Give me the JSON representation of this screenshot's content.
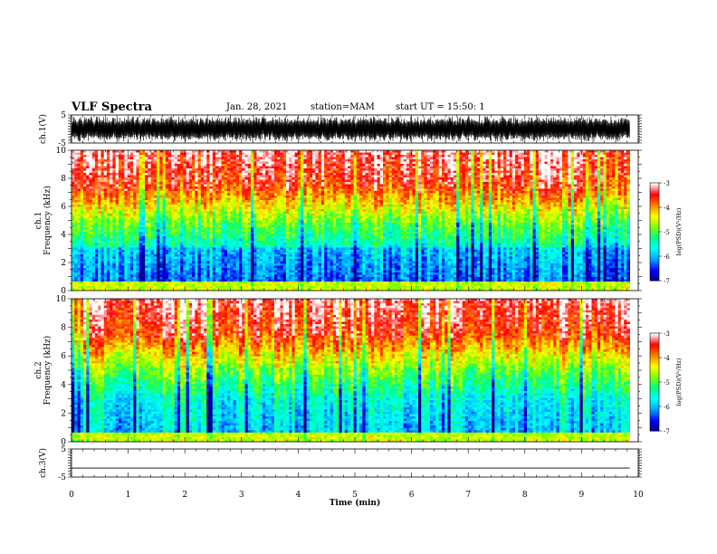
{
  "header": {
    "title": "VLF Spectra",
    "date": "Jan. 28, 2021",
    "station": "station=MAM",
    "start": "start UT =  15:50: 1"
  },
  "chart_data": [
    {
      "type": "line",
      "panel": "ch1-waveform",
      "ylabel": "ch.1(V)",
      "ylim": [
        -5,
        5
      ],
      "yticks": [
        "5",
        "-5"
      ],
      "xlim": [
        0,
        10
      ],
      "description_of_trace": "dense black waveform filling most of the range"
    },
    {
      "type": "heatmap",
      "panel": "ch1-spectrogram",
      "ylabel": "ch.1\nFrequency (kHz)",
      "ylim": [
        0,
        10
      ],
      "yticks": [
        "0",
        "2",
        "4",
        "6",
        "8",
        "10"
      ],
      "xlim": [
        0,
        10
      ],
      "data_xlim": [
        0,
        9.85
      ],
      "colorbar": {
        "label": "log(PSD)(V²/Hz)",
        "range": [
          -7,
          -3
        ],
        "ticks": [
          "-3",
          "-4",
          "-5",
          "-6",
          "-7"
        ]
      }
    },
    {
      "type": "heatmap",
      "panel": "ch2-spectrogram",
      "ylabel": "ch.2\nFrequency (kHz)",
      "ylim": [
        0,
        10
      ],
      "yticks": [
        "0",
        "2",
        "4",
        "6",
        "8",
        "10"
      ],
      "xlim": [
        0,
        10
      ],
      "data_xlim": [
        0,
        9.85
      ],
      "colorbar": {
        "label": "log(PSD)(V²/Hz)",
        "range": [
          -7,
          -3
        ],
        "ticks": [
          "-3",
          "-4",
          "-5",
          "-6",
          "-7"
        ]
      }
    },
    {
      "type": "line",
      "panel": "ch3-waveform",
      "ylabel": "ch.3(V)",
      "ylim": [
        -5,
        5
      ],
      "yticks": [
        "5",
        "-5"
      ],
      "xlim": [
        0,
        10
      ],
      "trace_value": -1.8
    }
  ],
  "xaxis": {
    "label": "Time (min)",
    "ticks": [
      "0",
      "1",
      "2",
      "3",
      "4",
      "5",
      "6",
      "7",
      "8",
      "9",
      "10"
    ],
    "range": [
      0,
      10
    ]
  },
  "colors": {
    "colormap": [
      "#000080",
      "#0000ff",
      "#00a0ff",
      "#00ffff",
      "#00ff80",
      "#80ff00",
      "#ffff00",
      "#ff8000",
      "#ff0000",
      "#ffffff"
    ]
  }
}
